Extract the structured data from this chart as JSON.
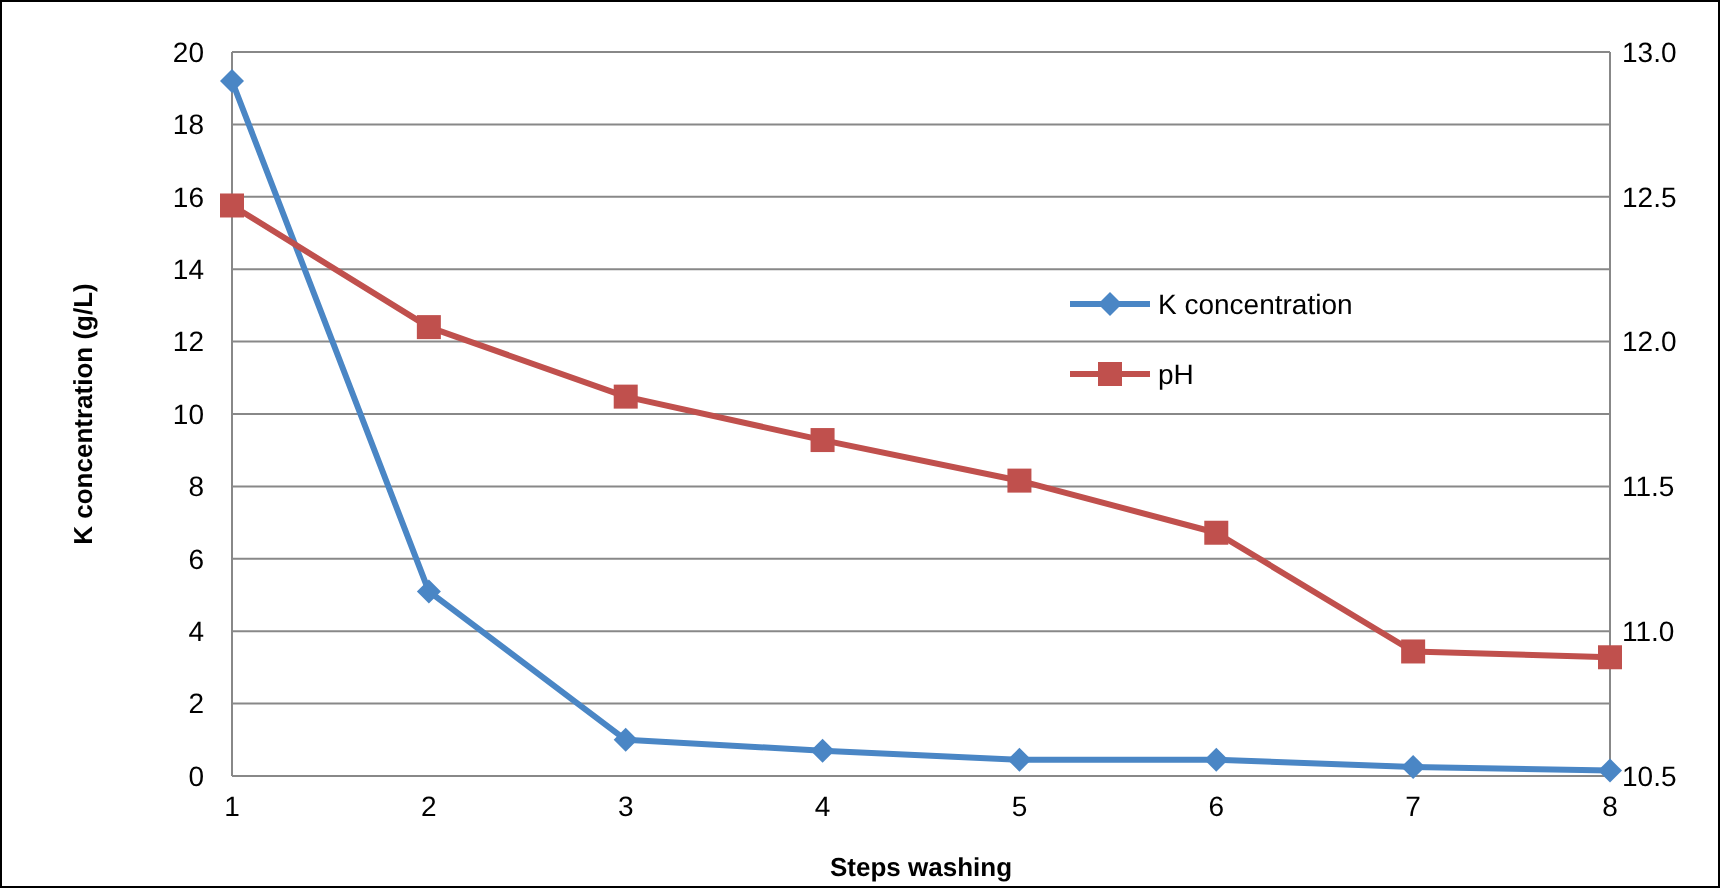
{
  "chart_data": {
    "type": "line",
    "xlabel": "Steps washing",
    "ylabel": "K concentration (g/L)",
    "x": [
      1,
      2,
      3,
      4,
      5,
      6,
      7,
      8
    ],
    "xlim": [
      1,
      8
    ],
    "xticks": [
      1,
      2,
      3,
      4,
      5,
      6,
      7,
      8
    ],
    "ylim": [
      0,
      20
    ],
    "yticks": [
      0,
      2,
      4,
      6,
      8,
      10,
      12,
      14,
      16,
      18,
      20
    ],
    "y2lim": [
      10.5,
      13
    ],
    "y2ticks": [
      {
        "value": 10.5,
        "label": "10.5"
      },
      {
        "value": 11,
        "label": "11.0"
      },
      {
        "value": 11.5,
        "label": "11.5"
      },
      {
        "value": 12,
        "label": "12.0"
      },
      {
        "value": 12.5,
        "label": "12.5"
      },
      {
        "value": 13,
        "label": "13.0"
      }
    ],
    "grid": "y",
    "legend": "right",
    "series": [
      {
        "name": "K concentration",
        "color": "#4a86c5",
        "marker": "diamond",
        "values": [
          19.2,
          5.1,
          1.0,
          0.7,
          0.45,
          0.45,
          0.25,
          0.15
        ]
      },
      {
        "name": "pH",
        "color": "#c0504d",
        "marker": "square",
        "axis": "y2",
        "values": [
          12.47,
          12.05,
          11.81,
          11.66,
          11.52,
          11.34,
          10.93,
          10.91
        ]
      }
    ]
  }
}
